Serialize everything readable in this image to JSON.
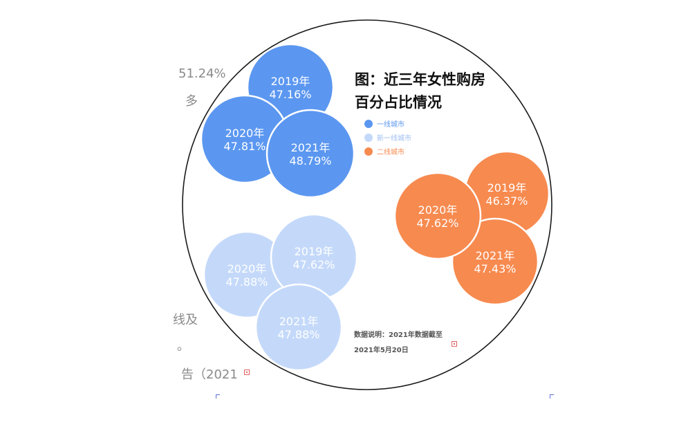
{
  "background_text": [
    "51.24%",
    "多",
    "线及",
    "。",
    "告（2021"
  ],
  "chart_data": {
    "type": "bubble",
    "title": "图：近三年女性购房百分占比情况",
    "title_lines": [
      "图：近三年女性购房",
      "百分占比情况"
    ],
    "legend_position": "top-right",
    "series": [
      {
        "name": "一线城市",
        "color": "#5b97f0",
        "points": [
          {
            "year": "2019年",
            "value": 47.16,
            "label": "47.16%"
          },
          {
            "year": "2020年",
            "value": 47.81,
            "label": "47.81%"
          },
          {
            "year": "2021年",
            "value": 48.79,
            "label": "48.79%"
          }
        ]
      },
      {
        "name": "新一线城市",
        "color": "#c4d9fa",
        "points": [
          {
            "year": "2019年",
            "value": 47.62,
            "label": "47.62%"
          },
          {
            "year": "2020年",
            "value": 47.88,
            "label": "47.88%"
          },
          {
            "year": "2021年",
            "value": 47.88,
            "label": "47.88%"
          }
        ]
      },
      {
        "name": "二线城市",
        "color": "#f78a4f",
        "points": [
          {
            "year": "2019年",
            "value": 46.37,
            "label": "46.37%"
          },
          {
            "year": "2020年",
            "value": 47.62,
            "label": "47.62%"
          },
          {
            "year": "2021年",
            "value": 47.43,
            "label": "47.43%"
          }
        ]
      }
    ],
    "note_lines": [
      "数据说明：2021年数据截至",
      "2021年5月20日"
    ]
  }
}
